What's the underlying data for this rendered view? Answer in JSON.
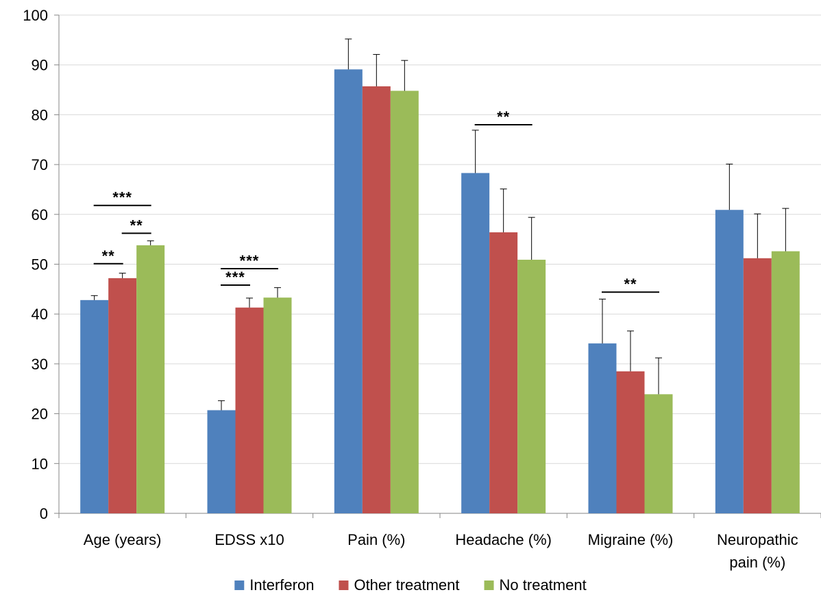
{
  "chart_data": {
    "type": "bar",
    "title": "",
    "xlabel": "",
    "ylabel": "",
    "ylim": [
      0,
      100
    ],
    "yticks": [
      0,
      10,
      20,
      30,
      40,
      50,
      60,
      70,
      80,
      90,
      100
    ],
    "grid": true,
    "legend_position": "bottom",
    "categories": [
      [
        "Age (years)"
      ],
      [
        "EDSS x10"
      ],
      [
        "Pain (%)"
      ],
      [
        "Headache (%)"
      ],
      [
        "Migraine (%)"
      ],
      [
        "Neuropathic",
        "pain (%)"
      ]
    ],
    "series": [
      {
        "name": "Interferon",
        "color": "#4f81bd",
        "values": [
          42.8,
          20.7,
          89.1,
          68.3,
          34.1,
          60.9
        ],
        "errors": [
          0.9,
          1.9,
          6.1,
          8.6,
          8.9,
          9.2
        ]
      },
      {
        "name": "Other treatment",
        "color": "#c0504d",
        "values": [
          47.2,
          41.3,
          85.7,
          56.4,
          28.5,
          51.2
        ],
        "errors": [
          1.0,
          1.9,
          6.4,
          8.7,
          8.1,
          8.9
        ]
      },
      {
        "name": "No treatment",
        "color": "#9bbb59",
        "values": [
          53.8,
          43.3,
          84.8,
          50.9,
          23.9,
          52.6
        ],
        "errors": [
          0.9,
          2.0,
          6.1,
          8.5,
          7.3,
          8.6
        ]
      }
    ],
    "significance": [
      {
        "category": 0,
        "from": 0,
        "to": 1,
        "y": 50.1,
        "label": "**"
      },
      {
        "category": 0,
        "from": 0,
        "to": 2,
        "y": 61.8,
        "label": "***"
      },
      {
        "category": 0,
        "from": 1,
        "to": 2,
        "y": 56.2,
        "label": "**"
      },
      {
        "category": 1,
        "from": 0,
        "to": 1,
        "y": 45.8,
        "label": "***"
      },
      {
        "category": 1,
        "from": 0,
        "to": 2,
        "y": 49.1,
        "label": "***"
      },
      {
        "category": 3,
        "from": 0,
        "to": 2,
        "y": 78.0,
        "label": "**"
      },
      {
        "category": 4,
        "from": 0,
        "to": 2,
        "y": 44.4,
        "label": "**"
      }
    ]
  }
}
